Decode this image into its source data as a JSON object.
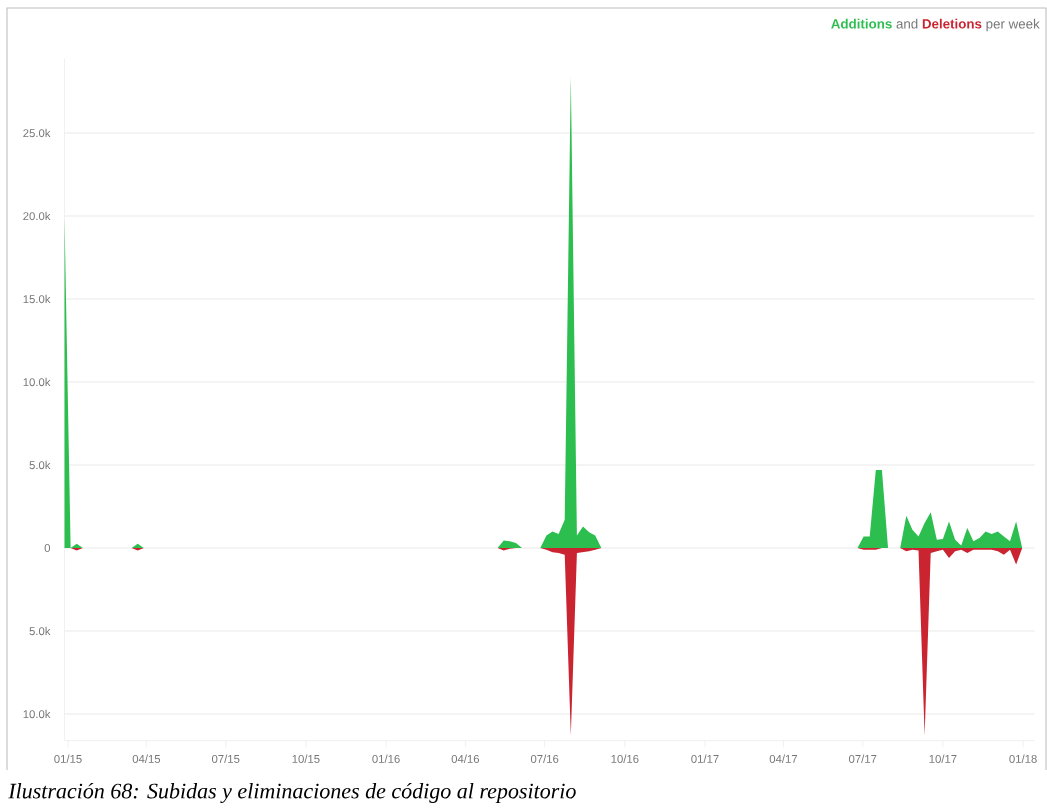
{
  "chart_data": {
    "type": "area",
    "x": [
      "2014-12-28",
      "2015-01-04",
      "2015-01-11",
      "2015-01-18",
      "2015-03-15",
      "2015-03-22",
      "2015-03-29",
      "2016-05-08",
      "2016-05-15",
      "2016-05-22",
      "2016-05-29",
      "2016-06-05",
      "2016-06-26",
      "2016-07-03",
      "2016-07-10",
      "2016-07-17",
      "2016-07-24",
      "2016-07-31",
      "2016-08-07",
      "2016-08-14",
      "2016-08-21",
      "2016-08-28",
      "2016-09-04",
      "2017-06-25",
      "2017-07-02",
      "2017-07-09",
      "2017-07-16",
      "2017-07-23",
      "2017-07-30",
      "2017-08-13",
      "2017-08-20",
      "2017-08-27",
      "2017-09-03",
      "2017-09-10",
      "2017-09-17",
      "2017-09-24",
      "2017-10-01",
      "2017-10-08",
      "2017-10-15",
      "2017-10-22",
      "2017-10-29",
      "2017-11-05",
      "2017-11-12",
      "2017-11-19",
      "2017-11-26",
      "2017-12-03",
      "2017-12-10",
      "2017-12-17",
      "2017-12-24",
      "2017-12-31"
    ],
    "series": [
      {
        "name": "Additions",
        "color": "#2cbe4e",
        "values": [
          19900,
          0,
          250,
          0,
          0,
          250,
          0,
          0,
          450,
          400,
          300,
          0,
          0,
          750,
          1000,
          850,
          1700,
          28400,
          750,
          1300,
          950,
          750,
          0,
          0,
          700,
          700,
          4700,
          4700,
          0,
          0,
          1950,
          1100,
          700,
          1500,
          2150,
          500,
          550,
          1600,
          500,
          150,
          1200,
          400,
          600,
          1000,
          850,
          1000,
          700,
          400,
          1600,
          0
        ]
      },
      {
        "name": "Deletions",
        "color": "#cb2431",
        "values": [
          0,
          0,
          -150,
          0,
          0,
          -150,
          0,
          0,
          -150,
          -50,
          0,
          0,
          0,
          -100,
          -250,
          -300,
          -400,
          -11300,
          -300,
          -250,
          -200,
          -100,
          0,
          0,
          -100,
          -100,
          -100,
          0,
          0,
          0,
          -200,
          -100,
          -150,
          -11300,
          -300,
          -200,
          -100,
          -600,
          -200,
          -100,
          -300,
          -100,
          -100,
          -100,
          -100,
          -200,
          -400,
          -100,
          -1000,
          0
        ]
      }
    ],
    "xlim": [
      "2014-12-28",
      "2018-01-14"
    ],
    "xticks": [
      {
        "value": "2015-01-01",
        "label": "01/15"
      },
      {
        "value": "2015-04-01",
        "label": "04/15"
      },
      {
        "value": "2015-07-01",
        "label": "07/15"
      },
      {
        "value": "2015-10-01",
        "label": "10/15"
      },
      {
        "value": "2016-01-01",
        "label": "01/16"
      },
      {
        "value": "2016-04-01",
        "label": "04/16"
      },
      {
        "value": "2016-07-01",
        "label": "07/16"
      },
      {
        "value": "2016-10-01",
        "label": "10/16"
      },
      {
        "value": "2017-01-01",
        "label": "01/17"
      },
      {
        "value": "2017-04-01",
        "label": "04/17"
      },
      {
        "value": "2017-07-01",
        "label": "07/17"
      },
      {
        "value": "2017-10-01",
        "label": "10/17"
      },
      {
        "value": "2018-01-01",
        "label": "01/18"
      }
    ],
    "ylim": [
      -11600,
      29500
    ],
    "yticks": [
      {
        "value": -10000,
        "label": "10.0k"
      },
      {
        "value": -5000,
        "label": "5.0k"
      },
      0,
      {
        "value": 5000,
        "label": "5.0k"
      },
      {
        "value": 10000,
        "label": "10.0k"
      },
      {
        "value": 15000,
        "label": "15.0k"
      },
      {
        "value": 20000,
        "label": "20.0k"
      },
      {
        "value": 25000,
        "label": "25.0k"
      }
    ],
    "grid": "y",
    "legend": "top right",
    "annotations": [
      "and",
      "per week",
      "Ilustración 68: Subidas y eliminaciones de código al repositorio"
    ]
  }
}
